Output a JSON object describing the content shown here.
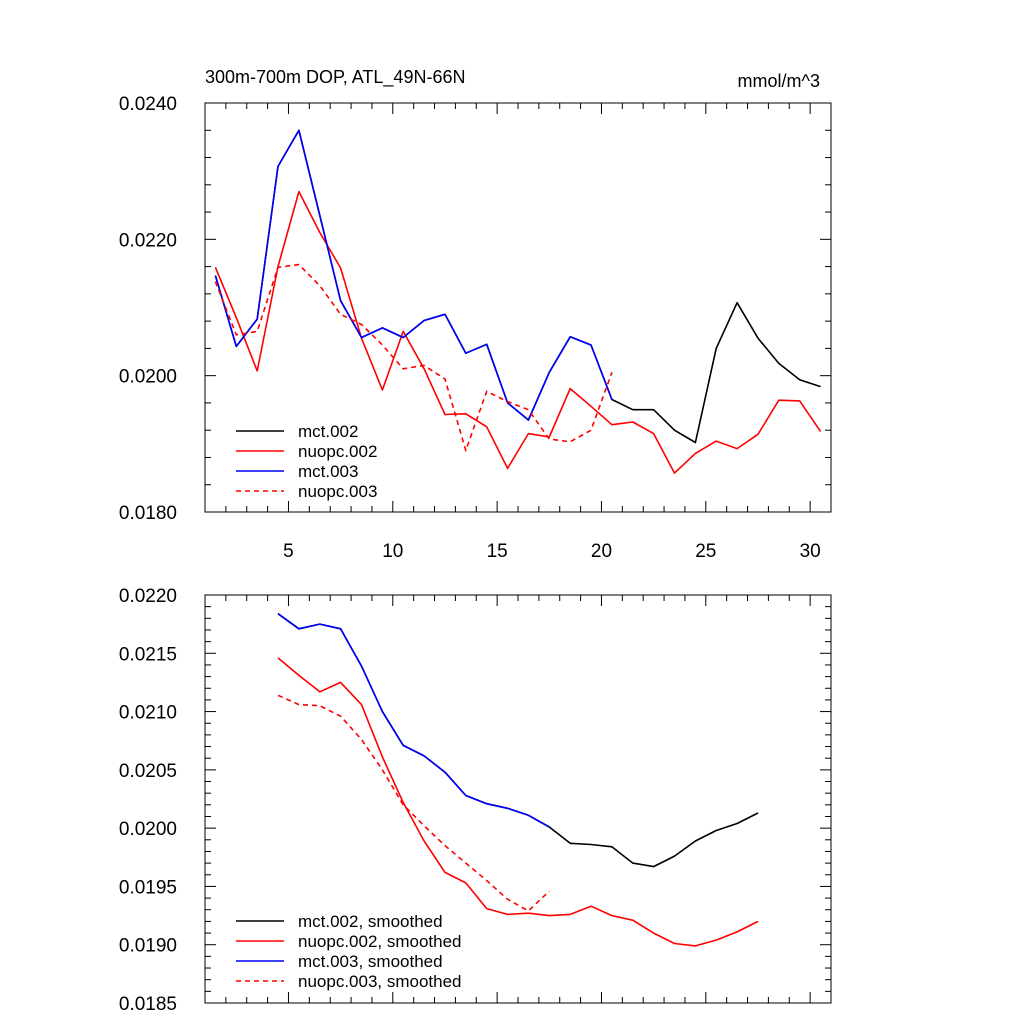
{
  "chart_data": [
    {
      "type": "line",
      "title": "300m-700m DOP, ATL_49N-66N",
      "units": "mmol/m^3",
      "xlim": [
        1,
        31
      ],
      "ylim": [
        0.018,
        0.024
      ],
      "xticks": [
        5,
        10,
        15,
        20,
        25,
        30
      ],
      "xtick_labels": [
        "5",
        "10",
        "15",
        "20",
        "25",
        "30"
      ],
      "yticks": [
        0.018,
        0.02,
        0.022,
        0.024
      ],
      "ytick_labels": [
        "0.0180",
        "0.0200",
        "0.0220",
        "0.0240"
      ],
      "legend_position": "bottom-left",
      "series": [
        {
          "name": "mct.002",
          "color": "#000000",
          "dash": "solid",
          "x": [
            1.5,
            2.5,
            3.5,
            4.5,
            5.5,
            6.5,
            7.5,
            8.5,
            9.5,
            10.5,
            11.5,
            12.5,
            13.5,
            14.5,
            15.5,
            16.5,
            17.5,
            18.5,
            19.5,
            20.5,
            21.5,
            22.5,
            23.5,
            24.5,
            25.5,
            26.5,
            27.5,
            28.5,
            29.5,
            30.5
          ],
          "values": [
            0.02147,
            0.02043,
            0.02083,
            0.02307,
            0.0236,
            0.02235,
            0.0211,
            0.02056,
            0.0207,
            0.02056,
            0.02081,
            0.0209,
            0.02033,
            0.02046,
            0.0196,
            0.01935,
            0.02005,
            0.02057,
            0.02045,
            0.01965,
            0.0195,
            0.0195,
            0.0192,
            0.01902,
            0.0204,
            0.02107,
            0.02055,
            0.02018,
            0.01994,
            0.01984
          ]
        },
        {
          "name": "nuopc.002",
          "color": "#ff0000",
          "dash": "solid",
          "x": [
            1.5,
            2.5,
            3.5,
            4.5,
            5.5,
            6.5,
            7.5,
            8.5,
            9.5,
            10.5,
            11.5,
            12.5,
            13.5,
            14.5,
            15.5,
            16.5,
            17.5,
            18.5,
            19.5,
            20.5,
            21.5,
            22.5,
            23.5,
            24.5,
            25.5,
            26.5,
            27.5,
            28.5,
            29.5,
            30.5
          ],
          "values": [
            0.02159,
            0.02085,
            0.02007,
            0.0216,
            0.0227,
            0.0221,
            0.02158,
            0.02055,
            0.01979,
            0.02065,
            0.0201,
            0.01943,
            0.01944,
            0.01925,
            0.01864,
            0.01915,
            0.0191,
            0.01981,
            0.01955,
            0.01928,
            0.01932,
            0.01915,
            0.01857,
            0.01886,
            0.01904,
            0.01893,
            0.01914,
            0.01964,
            0.01963,
            0.01918
          ]
        },
        {
          "name": "mct.003",
          "color": "#0000ff",
          "dash": "solid",
          "x": [
            1.5,
            2.5,
            3.5,
            4.5,
            5.5,
            6.5,
            7.5,
            8.5,
            9.5,
            10.5,
            11.5,
            12.5,
            13.5,
            14.5,
            15.5,
            16.5,
            17.5,
            18.5,
            19.5,
            20.5
          ],
          "values": [
            0.02147,
            0.02043,
            0.02083,
            0.02307,
            0.0236,
            0.02235,
            0.0211,
            0.02056,
            0.0207,
            0.02056,
            0.02081,
            0.0209,
            0.02033,
            0.02046,
            0.0196,
            0.01935,
            0.02005,
            0.02057,
            0.02045,
            0.01965
          ]
        },
        {
          "name": "nuopc.003",
          "color": "#ff0000",
          "dash": "dashed",
          "x": [
            1.5,
            2.5,
            3.5,
            4.5,
            5.5,
            6.5,
            7.5,
            8.5,
            9.5,
            10.5,
            11.5,
            12.5,
            13.5,
            14.5,
            15.5,
            16.5,
            17.5,
            18.5,
            19.5,
            20.5
          ],
          "values": [
            0.02138,
            0.0206,
            0.02065,
            0.02159,
            0.02163,
            0.02132,
            0.0209,
            0.02075,
            0.02045,
            0.0201,
            0.02015,
            0.01995,
            0.0189,
            0.01977,
            0.01962,
            0.0195,
            0.01907,
            0.01903,
            0.0192,
            0.02005
          ]
        }
      ]
    },
    {
      "type": "line",
      "xlim": [
        1,
        31
      ],
      "ylim": [
        0.0185,
        0.022
      ],
      "yticks": [
        0.0185,
        0.019,
        0.0195,
        0.02,
        0.0205,
        0.021,
        0.0215,
        0.022
      ],
      "ytick_labels": [
        "0.0185",
        "0.0190",
        "0.0195",
        "0.0200",
        "0.0205",
        "0.0210",
        "0.0215",
        "0.0220"
      ],
      "legend_position": "bottom-left",
      "series": [
        {
          "name": "mct.002, smoothed",
          "color": "#000000",
          "dash": "solid",
          "x": [
            4.5,
            5.5,
            6.5,
            7.5,
            8.5,
            9.5,
            10.5,
            11.5,
            12.5,
            13.5,
            14.5,
            15.5,
            16.5,
            17.5,
            18.5,
            19.5,
            20.5,
            21.5,
            22.5,
            23.5,
            24.5,
            25.5,
            26.5,
            27.5
          ],
          "values": [
            0.02184,
            0.02171,
            0.02175,
            0.02171,
            0.02139,
            0.021,
            0.02071,
            0.02062,
            0.02048,
            0.02028,
            0.02021,
            0.02017,
            0.02011,
            0.02001,
            0.01987,
            0.01986,
            0.01984,
            0.0197,
            0.01967,
            0.01976,
            0.01989,
            0.01998,
            0.02004,
            0.02013
          ]
        },
        {
          "name": "nuopc.002, smoothed",
          "color": "#ff0000",
          "dash": "solid",
          "x": [
            4.5,
            5.5,
            6.5,
            7.5,
            8.5,
            9.5,
            10.5,
            11.5,
            12.5,
            13.5,
            14.5,
            15.5,
            16.5,
            17.5,
            18.5,
            19.5,
            20.5,
            21.5,
            22.5,
            23.5,
            24.5,
            25.5,
            26.5,
            27.5
          ],
          "values": [
            0.02146,
            0.02131,
            0.02117,
            0.02125,
            0.02106,
            0.02061,
            0.02022,
            0.01989,
            0.01962,
            0.01953,
            0.01931,
            0.01926,
            0.01927,
            0.01925,
            0.01926,
            0.01933,
            0.01925,
            0.01921,
            0.0191,
            0.01901,
            0.01899,
            0.01904,
            0.01911,
            0.0192
          ]
        },
        {
          "name": "mct.003, smoothed",
          "color": "#0000ff",
          "dash": "solid",
          "x": [
            4.5,
            5.5,
            6.5,
            7.5,
            8.5,
            9.5,
            10.5,
            11.5,
            12.5,
            13.5,
            14.5,
            15.5,
            16.5,
            17.5
          ],
          "values": [
            0.02184,
            0.02171,
            0.02175,
            0.02171,
            0.02139,
            0.021,
            0.02071,
            0.02062,
            0.02048,
            0.02028,
            0.02021,
            0.02017,
            0.02011,
            0.02001
          ]
        },
        {
          "name": "nuopc.003, smoothed",
          "color": "#ff0000",
          "dash": "dashed",
          "x": [
            4.5,
            5.5,
            6.5,
            7.5,
            8.5,
            9.5,
            10.5,
            11.5,
            12.5,
            13.5,
            14.5,
            15.5,
            16.5,
            17.5
          ],
          "values": [
            0.02114,
            0.02106,
            0.02105,
            0.02096,
            0.02076,
            0.0205,
            0.0202,
            0.02002,
            0.01985,
            0.0197,
            0.01955,
            0.01939,
            0.01929,
            0.01946
          ]
        }
      ]
    }
  ]
}
